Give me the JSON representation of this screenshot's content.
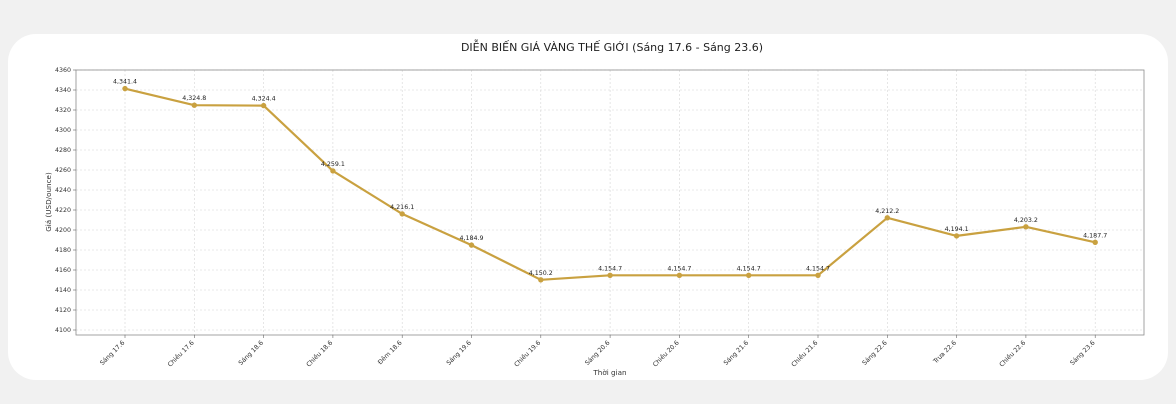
{
  "chart_data": {
    "type": "line",
    "title": "DIỄN BIẾN GIÁ VÀNG THẾ GIỚI (Sáng 17.6 - Sáng 23.6)",
    "xlabel": "Thời gian",
    "ylabel": "Giá (USD/ounce)",
    "categories": [
      "Sáng 17.6",
      "Chiều 17.6",
      "Sáng 18.6",
      "Chiều 18.6",
      "Đêm 18.6",
      "Sáng 19.6",
      "Chiều 19.6",
      "Sáng 20.6",
      "Chiều 20.6",
      "Sáng 21.6",
      "Chiều 21.6",
      "Sáng 22.6",
      "Trưa 22.6",
      "Chiều 22.6",
      "Sáng 23.6"
    ],
    "values": [
      4341.4,
      4324.8,
      4324.4,
      4259.1,
      4216.1,
      4184.9,
      4150.2,
      4154.7,
      4154.7,
      4154.7,
      4154.7,
      4212.2,
      4194.1,
      4203.2,
      4187.7
    ],
    "data_labels": [
      "4,341.4",
      "4,324.8",
      "4,324.4",
      "4,259.1",
      "4,216.1",
      "4,184.9",
      "4,150.2",
      "4,154.7",
      "4,154.7",
      "4,154.7",
      "4,154.7",
      "4,212.2",
      "4,194.1",
      "4,203.2",
      "4,187.7"
    ],
    "y_ticks": [
      "4100",
      "4120",
      "4140",
      "4160",
      "4180",
      "4200",
      "4220",
      "4240",
      "4260",
      "4280",
      "4300",
      "4320",
      "4340",
      "4360"
    ],
    "ylim": [
      4095,
      4360
    ],
    "grid": true,
    "line_color": "#c9a140"
  }
}
